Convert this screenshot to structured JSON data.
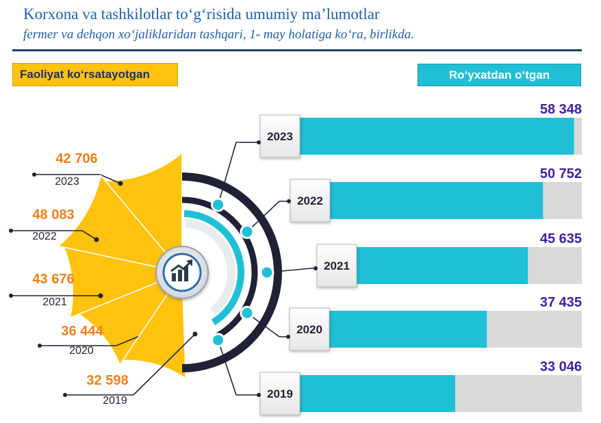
{
  "header": {
    "title": "Korxona va tashkilotlar to‘g‘risida umumiy ma’lumotlar",
    "subtitle": "fermer va dehqon xo‘jaliklaridan tashqari, 1- may holatiga ko‘ra, birlikda."
  },
  "legend": {
    "left_label": "Faoliyat ko‘rsatayotgan",
    "right_label": "Ro‘yxatdan o‘tgan"
  },
  "colors": {
    "active": "#ffc20e",
    "registered": "#1fc0d6",
    "track": "#d9d9d9",
    "active_value_text": "#f07f1a",
    "registered_value_text": "#3b1fa3",
    "ring_dark": "#1f2135"
  },
  "center_icon": "growth-chart-icon",
  "chart_data": [
    {
      "type": "bar",
      "name": "Ro‘yxatdan o‘tgan",
      "categories": [
        "2023",
        "2022",
        "2021",
        "2020",
        "2019"
      ],
      "values": [
        58348,
        50752,
        45635,
        37435,
        33046
      ],
      "value_labels": [
        "58 348",
        "50 752",
        "45 635",
        "37 435",
        "33 046"
      ],
      "title": "Ro‘yxatdan o‘tgan"
    },
    {
      "type": "pie",
      "name": "Faoliyat ko‘rsatayotgan",
      "categories": [
        "2023",
        "2022",
        "2021",
        "2020",
        "2019"
      ],
      "values": [
        42706,
        48083,
        43676,
        36444,
        32598
      ],
      "value_labels": [
        "42 706",
        "48 083",
        "43 676",
        "36 444",
        "32 598"
      ],
      "title": "Faoliyat ko‘rsatayotgan"
    }
  ]
}
